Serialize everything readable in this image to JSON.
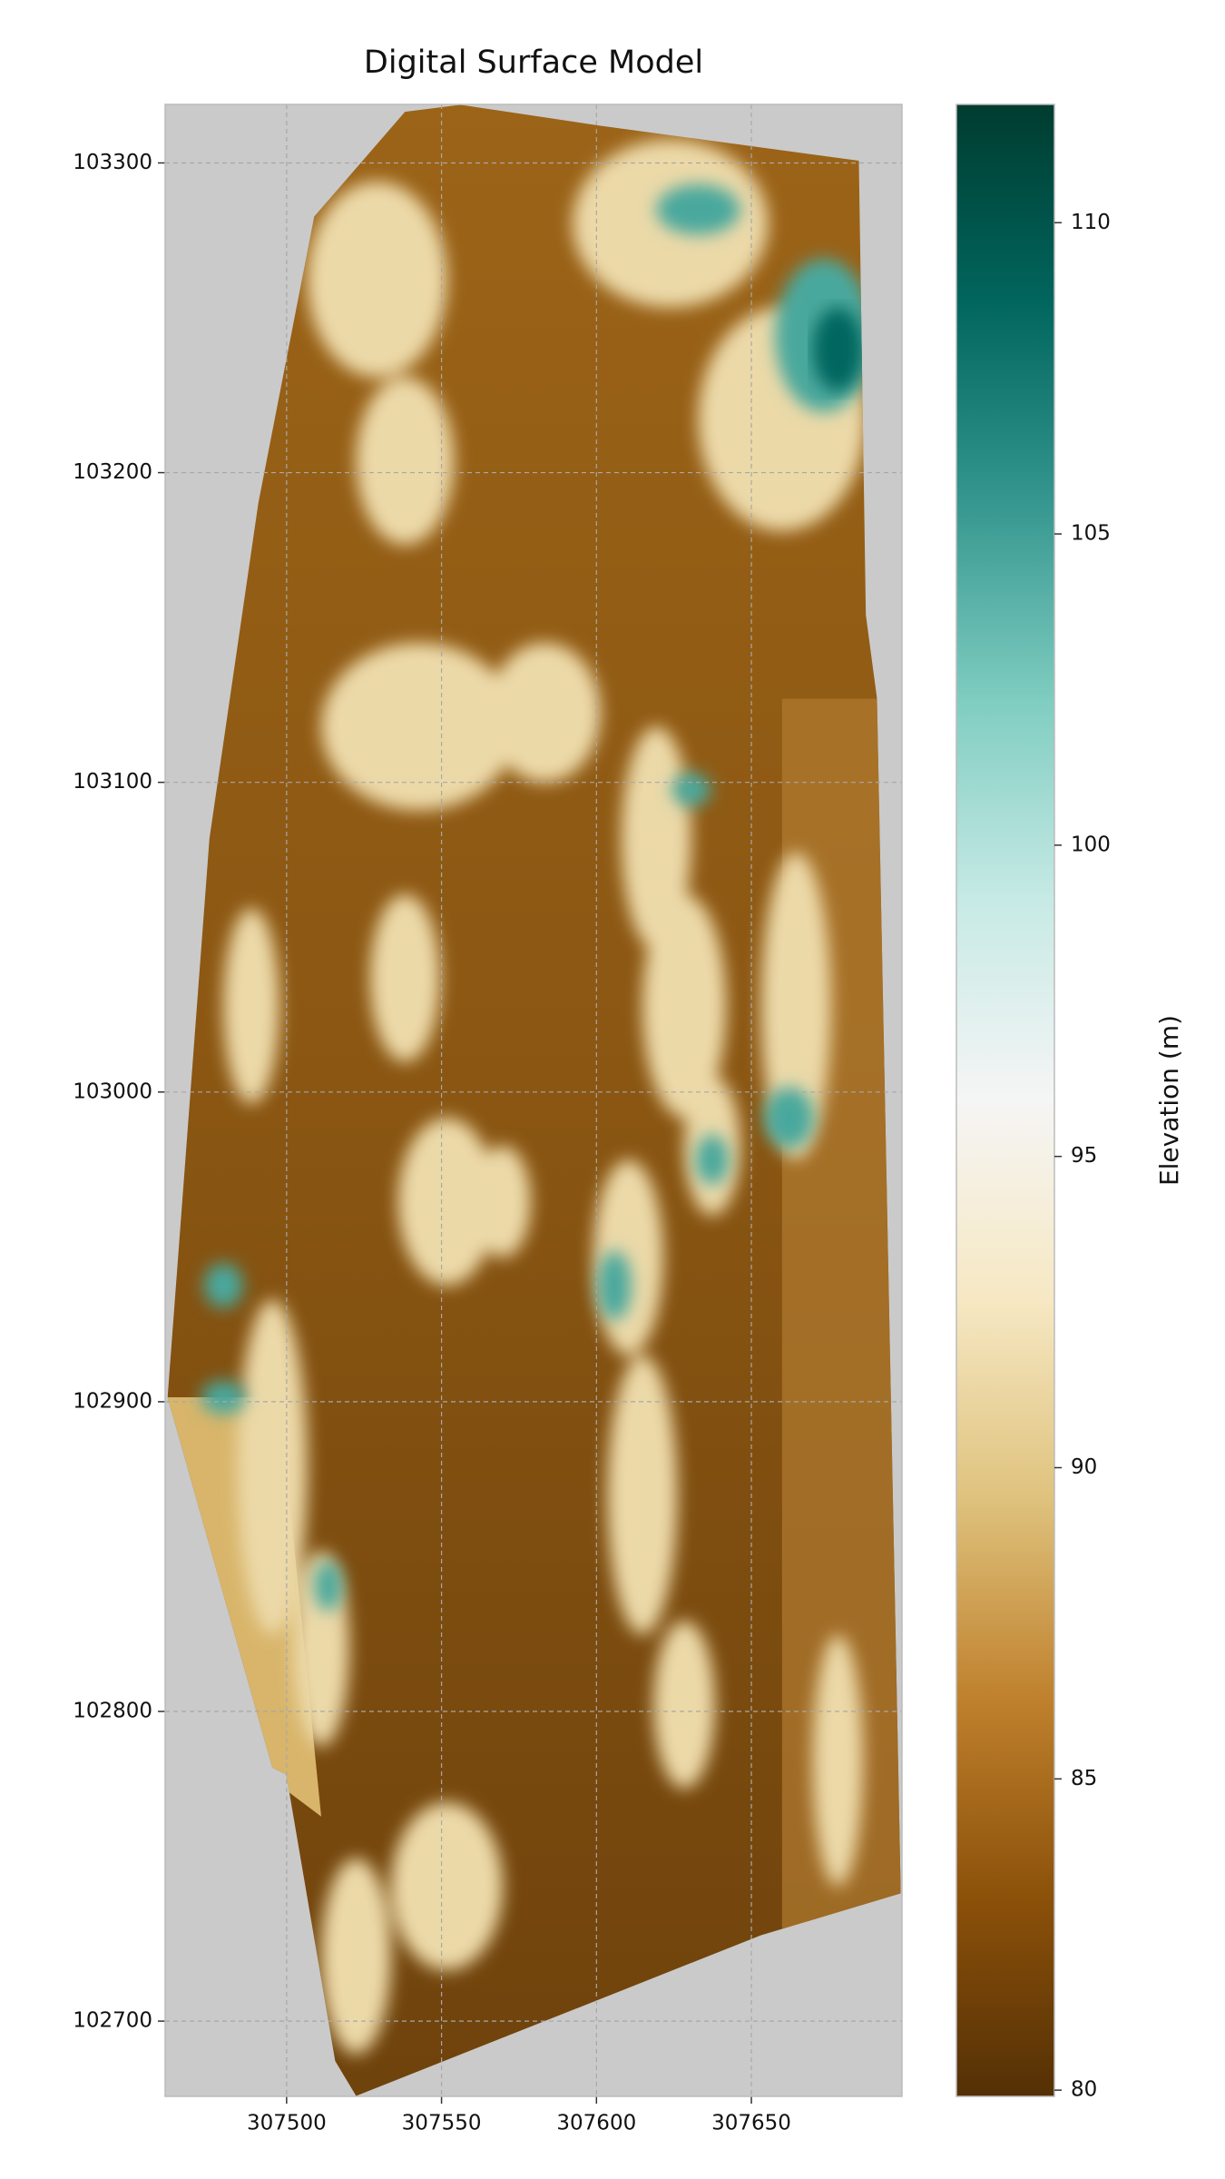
{
  "chart_data": {
    "type": "heatmap",
    "title": "Digital Surface Model",
    "xlim": [
      307460.8,
      307698.6
    ],
    "xticks": [
      307500,
      307550,
      307600,
      307650
    ],
    "ylim": [
      102675.7,
      103318.9
    ],
    "yticks": [
      102700,
      102800,
      102900,
      103000,
      103100,
      103200,
      103300
    ],
    "grid": true,
    "colorbar": {
      "label": "Elevation (m)",
      "lim": [
        79.9,
        111.9
      ],
      "ticks": [
        80,
        85,
        90,
        95,
        100,
        105,
        110
      ],
      "colors": [
        "#543005",
        "#8c510a",
        "#bf812d",
        "#dfc27d",
        "#f6e8c3",
        "#f5f5f5",
        "#c7eae5",
        "#80cdc1",
        "#35978f",
        "#01665e",
        "#003c30"
      ]
    }
  }
}
